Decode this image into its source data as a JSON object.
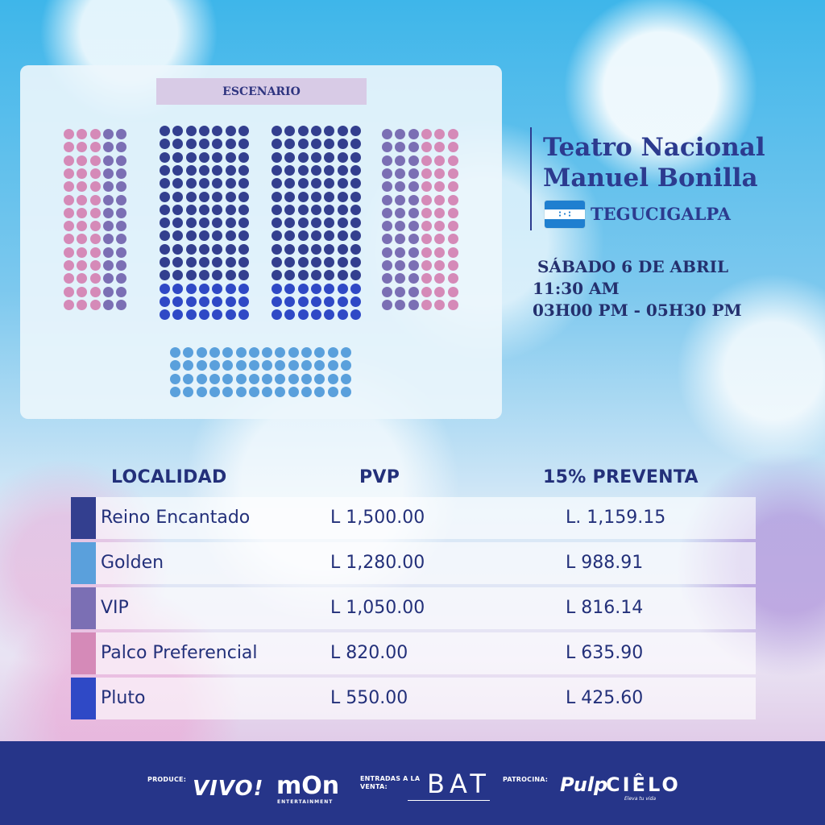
{
  "stage_label": "ESCENARIO",
  "venue": {
    "title_line1": "Teatro Nacional",
    "title_line2": "Manuel Bonilla",
    "city": "TEGUCIGALPA",
    "flag_colors": [
      "#1f7fd0",
      "#ffffff",
      "#1f7fd0"
    ]
  },
  "schedule": {
    "date": "SÁBADO 6 DE ABRIL",
    "time1": "11:30 AM",
    "time2": "03H00 PM - 05H30 PM"
  },
  "table": {
    "headers": [
      "LOCALIDAD",
      "PVP",
      "15% PREVENTA"
    ],
    "rows": [
      {
        "name": "Reino Encantado",
        "pvp": "L  1,500.00",
        "preventa": "L. 1,159.15",
        "color": "#333f8f"
      },
      {
        "name": "Golden",
        "pvp": "L  1,280.00",
        "preventa": "L 988.91",
        "color": "#5aa0dc"
      },
      {
        "name": "VIP",
        "pvp": "L  1,050.00",
        "preventa": "L 816.14",
        "color": "#7b6fb4"
      },
      {
        "name": "Palco Preferencial",
        "pvp": "L  820.00",
        "preventa": "L 635.90",
        "color": "#d58ab8"
      },
      {
        "name": "Pluto",
        "pvp": "L  550.00",
        "preventa": "L 425.60",
        "color": "#2f49c6"
      }
    ]
  },
  "seat_colors": {
    "reino": "#333f8f",
    "pluto": "#2f49c6",
    "golden": "#5aa0dc",
    "vip": "#7b6fb4",
    "palco": "#d58ab8"
  },
  "footer": {
    "produce_label": "PRODUCE:",
    "logo_vivo": "VIVO!",
    "logo_mon": "mOn",
    "mon_sub": "ENTERTAINMENT",
    "tickets_label_1": "ENTRADAS A LA",
    "tickets_label_2": "VENTA:",
    "logo_bat": "BAT",
    "sponsor_label": "PATROCINA:",
    "logo_pulp": "Pulp",
    "logo_cielo": "CIÊLO",
    "cielo_sub": "Eleva tu vida"
  }
}
